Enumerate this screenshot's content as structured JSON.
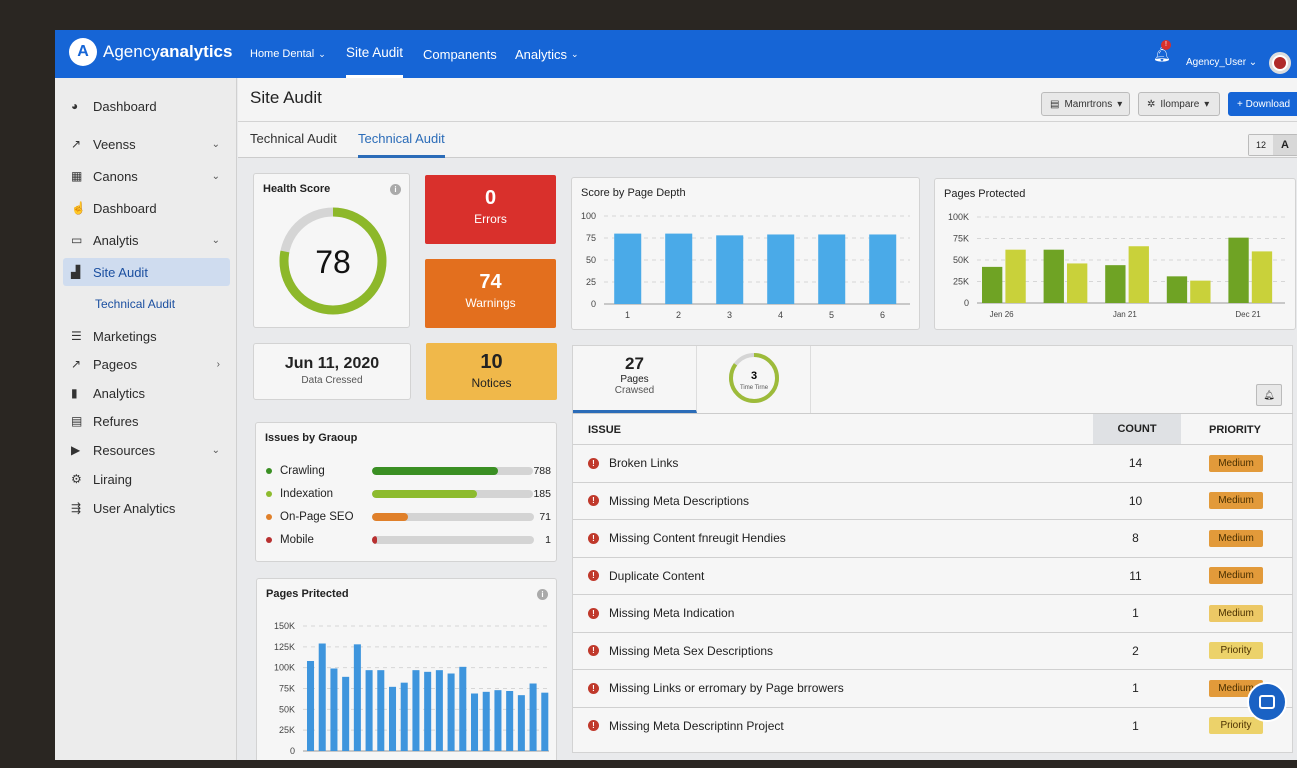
{
  "brand": {
    "name_light": "Agency",
    "name_bold": "analytics"
  },
  "topnav": {
    "items": [
      {
        "label": "Home Dental",
        "dropdown": true
      },
      {
        "label": "Site Audit",
        "active": true
      },
      {
        "label": "Companents"
      },
      {
        "label": "Analytics",
        "dropdown": true
      }
    ],
    "notification_badge": "!",
    "user": "Agency_User"
  },
  "sidebar": {
    "items": [
      {
        "label": "Dashboard",
        "icon": "dashboard-icon"
      },
      {
        "label": "Veenss",
        "icon": "trend-icon",
        "chevron": "down"
      },
      {
        "label": "Canons",
        "icon": "grid-icon",
        "chevron": "down"
      },
      {
        "label": "Dashboard",
        "icon": "hand-icon"
      },
      {
        "label": "Analytis",
        "icon": "window-icon",
        "chevron": "down"
      },
      {
        "label": "Site Audit",
        "icon": "bar-chart-icon",
        "active": true
      },
      {
        "label": "Technical Audit",
        "sub": true
      },
      {
        "label": "Marketings",
        "icon": "list-icon"
      },
      {
        "label": "Pageos",
        "icon": "trend-icon",
        "chevron": "right"
      },
      {
        "label": "Analytics",
        "icon": "bars-icon"
      },
      {
        "label": "Refures",
        "icon": "table-icon"
      },
      {
        "label": "Resources",
        "icon": "play-icon",
        "chevron": "down"
      },
      {
        "label": "Liraing",
        "icon": "gear-icon"
      },
      {
        "label": "User Analytics",
        "icon": "filter-icon"
      }
    ]
  },
  "header": {
    "title": "Site Audit",
    "buttons": {
      "date": "Mamrtrons",
      "compare": "Ilompare",
      "download": "+ Download"
    },
    "view_toggle": [
      "12",
      "A"
    ]
  },
  "tabs": [
    {
      "label": "Technical Audit"
    },
    {
      "label": "Technical Audit",
      "active": true
    }
  ],
  "health": {
    "title": "Health Score",
    "score": 78,
    "max": 100,
    "color": "#8db82a"
  },
  "stats": {
    "errors": {
      "value": "0",
      "label": "Errors",
      "color": "#d9302c"
    },
    "warnings": {
      "value": "74",
      "label": "Warnings",
      "color": "#e36f1e"
    },
    "notices": {
      "value": "10",
      "label": "Notices",
      "color": "#f0b84a"
    }
  },
  "date_card": {
    "date": "Jun 11, 2020",
    "label": "Data Cressed"
  },
  "issues_by_group": {
    "title": "Issues by Graoup",
    "items": [
      {
        "label": "Crawling",
        "value": "788",
        "fill": 0.78,
        "color": "#3a8f23"
      },
      {
        "label": "Indexation",
        "value": "185",
        "fill": 0.65,
        "color": "#8dbb2e"
      },
      {
        "label": "On-Page SEO",
        "value": "71",
        "fill": 0.22,
        "color": "#e0802a"
      },
      {
        "label": "Mobile",
        "value": "1",
        "fill": 0.03,
        "color": "#b83030"
      }
    ]
  },
  "chart_data": [
    {
      "type": "bar",
      "title": "Score by Page Depth",
      "categories": [
        "1",
        "2",
        "3",
        "4",
        "5",
        "6"
      ],
      "values": [
        80,
        80,
        78,
        79,
        79,
        79
      ],
      "ylim": [
        0,
        100
      ],
      "yticks": [
        "0",
        "25",
        "50",
        "75",
        "100"
      ],
      "grid": true,
      "color": "#4aaae8"
    },
    {
      "type": "bar",
      "title": "Pages Protected",
      "series": [
        {
          "values": [
            42000,
            62000,
            44000,
            31000,
            76000
          ],
          "color": "#6fa324"
        },
        {
          "values": [
            62000,
            46000,
            66000,
            26000,
            60000
          ],
          "color": "#c9d13a"
        }
      ],
      "xlabels": [
        "Jen 26",
        "",
        "Jan 21",
        "",
        "Dec 21"
      ],
      "ylim": [
        0,
        100000
      ],
      "yticks": [
        "0",
        "25K",
        "50K",
        "75K",
        "100K"
      ],
      "grid": true
    },
    {
      "type": "bar",
      "title": "Pages Pritected",
      "values": [
        108000,
        129000,
        99000,
        89000,
        128000,
        97000,
        97000,
        77000,
        82000,
        97000,
        95000,
        97000,
        93000,
        101000,
        69000,
        71000,
        73000,
        72000,
        67000,
        81000,
        70000
      ],
      "ylim": [
        0,
        150000
      ],
      "yticks": [
        "0",
        "25K",
        "50K",
        "75K",
        "100K",
        "125K",
        "150K"
      ],
      "grid": true,
      "color": "#3e95dd"
    }
  ],
  "crawl": {
    "pages_value": "27",
    "pages_label1": "Pages",
    "pages_label2": "Crawsed",
    "time_value": "3",
    "time_label": "Time Tirne",
    "time_fill": 0.85
  },
  "table": {
    "columns": [
      "ISSUE",
      "COUNT",
      "PRIORITY"
    ],
    "rows": [
      {
        "issue": "Broken Links",
        "count": "14",
        "priority": "Medium",
        "color": "#e29a3a"
      },
      {
        "issue": "Missing Meta Descriptions",
        "count": "10",
        "priority": "Medium",
        "color": "#e29a3a"
      },
      {
        "issue": "Missing Content fnreugit Hendies",
        "count": "8",
        "priority": "Medium",
        "color": "#e29a3a"
      },
      {
        "issue": "Duplicate Content",
        "count": "11",
        "priority": "Medium",
        "color": "#e29a3a"
      },
      {
        "issue": "Missing Meta Indication",
        "count": "1",
        "priority": "Medium",
        "color": "#ecc865"
      },
      {
        "issue": "Missing Meta Sex Descriptions",
        "count": "2",
        "priority": "Priority",
        "color": "#ecd26a"
      },
      {
        "issue": "Missing Links or erromary by Page brrowers",
        "count": "1",
        "priority": "Medium",
        "color": "#e29a3a"
      },
      {
        "issue": "Missing Meta Descriptinn Project",
        "count": "1",
        "priority": "Priority",
        "color": "#ecd26a"
      }
    ]
  }
}
